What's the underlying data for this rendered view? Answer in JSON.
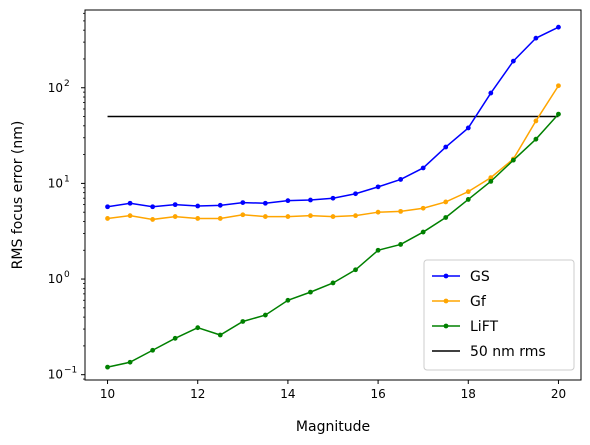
{
  "chart_data": {
    "type": "line",
    "title": "",
    "xlabel": "Magnitude",
    "ylabel": "RMS focus error (nm)",
    "xlim": [
      9.5,
      20.5
    ],
    "ylim": [
      0.088,
      650
    ],
    "yscale": "log",
    "grid": false,
    "legend_position": "lower-right",
    "x_ticks": [
      10,
      12,
      14,
      16,
      18,
      20
    ],
    "x_tick_labels": [
      "10",
      "12",
      "14",
      "16",
      "18",
      "20"
    ],
    "y_ticks": [
      0.1,
      1,
      10,
      100
    ],
    "y_tick_base": "10",
    "y_tick_exponents": [
      "−1",
      "0",
      "1",
      "2"
    ],
    "x": [
      10,
      10.5,
      11,
      11.5,
      12,
      12.5,
      13,
      13.5,
      14,
      14.5,
      15,
      15.5,
      16,
      16.5,
      17,
      17.5,
      18,
      18.5,
      19,
      19.5,
      20
    ],
    "series": [
      {
        "name": "GS",
        "color": "#0000ff",
        "values": [
          5.7,
          6.2,
          5.7,
          6.0,
          5.8,
          5.9,
          6.3,
          6.2,
          6.6,
          6.7,
          7.0,
          7.8,
          9.2,
          11.0,
          14.5,
          24.0,
          38.0,
          88.0,
          190.0,
          330.0,
          430.0
        ]
      },
      {
        "name": "Gf",
        "color": "#ffa500",
        "values": [
          4.3,
          4.6,
          4.2,
          4.5,
          4.3,
          4.3,
          4.7,
          4.5,
          4.5,
          4.6,
          4.5,
          4.6,
          5.0,
          5.1,
          5.5,
          6.4,
          8.2,
          11.5,
          18.0,
          45.0,
          105.0
        ]
      },
      {
        "name": "LiFT",
        "color": "#008000",
        "values": [
          0.12,
          0.135,
          0.18,
          0.24,
          0.31,
          0.26,
          0.36,
          0.42,
          0.6,
          0.73,
          0.91,
          1.25,
          2.0,
          2.3,
          3.1,
          4.4,
          6.8,
          10.5,
          17.5,
          29.0,
          53.0
        ]
      }
    ],
    "reference_line": {
      "name": "50 nm rms",
      "color": "#000000",
      "y": 50,
      "x_from": 10,
      "x_to": 20
    }
  }
}
